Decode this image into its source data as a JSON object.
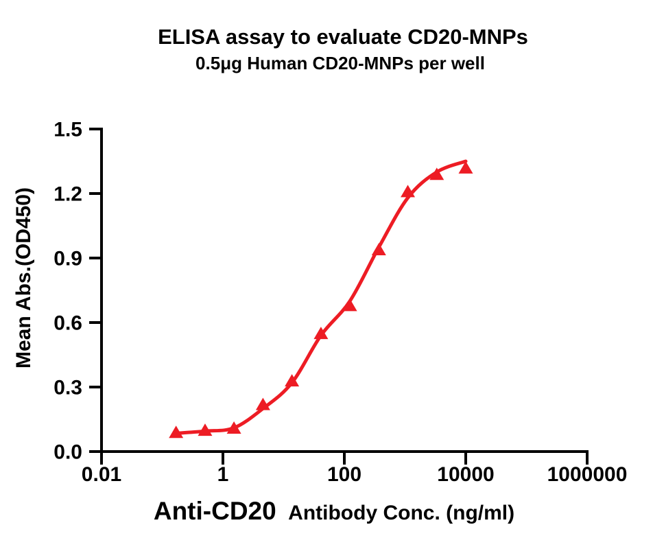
{
  "chart_data": {
    "type": "scatter",
    "title": "ELISA assay to evaluate CD20-MNPs",
    "subtitle": "0.5μg Human CD20-MNPs per well",
    "xlabel": "Anti-CD20 Antibody Conc. (ng/ml)",
    "xlabel_primary": "Anti-CD20",
    "xlabel_secondary": "Antibody Conc. (ng/ml)",
    "ylabel": "Mean Abs.(OD450)",
    "x_scale": "log10",
    "xlim": [
      0.01,
      1000000
    ],
    "ylim": [
      0.0,
      1.5
    ],
    "x_tick_values": [
      0.01,
      1,
      100,
      10000,
      1000000
    ],
    "x_tick_labels": [
      "0.01",
      "1",
      "100",
      "10000",
      "1000000"
    ],
    "y_tick_values": [
      0.0,
      0.3,
      0.6,
      0.9,
      1.2,
      1.5
    ],
    "y_tick_labels": [
      "0.0",
      "0.3",
      "0.6",
      "0.9",
      "1.2",
      "1.5"
    ],
    "grid": false,
    "legend": "none",
    "series": [
      {
        "marker": "triangle-up",
        "color": "#ED1C24",
        "line": "sigmoidal 4PL fit",
        "x": [
          0.169,
          0.508,
          1.52,
          4.57,
          13.7,
          41.2,
          123.5,
          370.4,
          1111,
          3333,
          10000
        ],
        "y": [
          0.09,
          0.1,
          0.11,
          0.22,
          0.33,
          0.55,
          0.68,
          0.94,
          1.21,
          1.29,
          1.32
        ],
        "fit_y": [
          0.085,
          0.095,
          0.11,
          0.2,
          0.32,
          0.54,
          0.7,
          0.95,
          1.18,
          1.3,
          1.35
        ]
      }
    ],
    "colors": {
      "curve": "#ED1C24",
      "axis": "#000000",
      "text": "#000000",
      "background": "#FFFFFF"
    }
  }
}
